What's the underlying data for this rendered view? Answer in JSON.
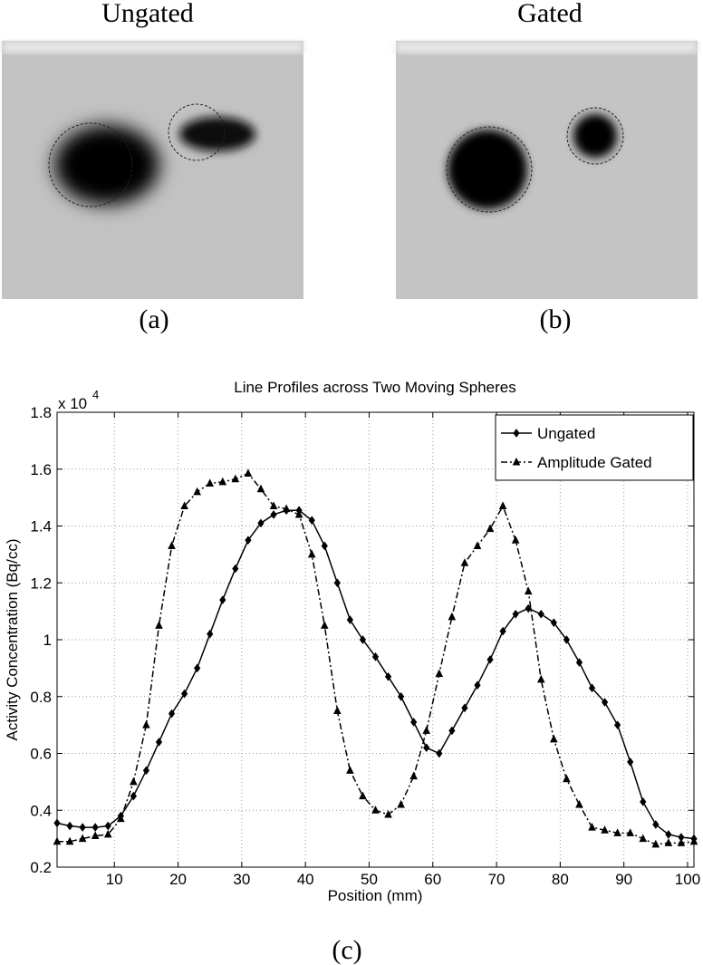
{
  "panels": {
    "a_title": "Ungated",
    "b_title": "Gated",
    "a_label": "(a)",
    "b_label": "(b)",
    "c_label": "(c)"
  },
  "chart_data": {
    "type": "line",
    "title": "Line Profiles across Two Moving Spheres",
    "xlabel": "Position (mm)",
    "ylabel": "Activity Concentration (Bq/cc)",
    "y_multiplier": "x 10",
    "y_multiplier_exp": "4",
    "x": [
      1,
      3,
      5,
      7,
      9,
      11,
      13,
      15,
      17,
      19,
      21,
      23,
      25,
      27,
      29,
      31,
      33,
      35,
      37,
      39,
      41,
      43,
      45,
      47,
      49,
      51,
      53,
      55,
      57,
      59,
      61,
      63,
      65,
      67,
      69,
      71,
      73,
      75,
      77,
      79,
      81,
      83,
      85,
      87,
      89,
      91,
      93,
      95,
      97,
      99,
      101
    ],
    "series": [
      {
        "name": "Ungated",
        "color": "#000000",
        "dash": "solid",
        "marker": "diamond",
        "values": [
          0.355,
          0.345,
          0.34,
          0.34,
          0.345,
          0.38,
          0.45,
          0.54,
          0.64,
          0.74,
          0.81,
          0.9,
          1.02,
          1.14,
          1.25,
          1.35,
          1.41,
          1.44,
          1.455,
          1.455,
          1.42,
          1.33,
          1.2,
          1.07,
          1.0,
          0.94,
          0.87,
          0.8,
          0.71,
          0.62,
          0.6,
          0.68,
          0.76,
          0.84,
          0.93,
          1.03,
          1.09,
          1.11,
          1.09,
          1.06,
          1.0,
          0.92,
          0.83,
          0.78,
          0.7,
          0.57,
          0.43,
          0.35,
          0.315,
          0.305,
          0.3
        ]
      },
      {
        "name": "Amplitude Gated",
        "color": "#000000",
        "dash": "dashdot",
        "marker": "triangle",
        "values": [
          0.29,
          0.29,
          0.3,
          0.31,
          0.315,
          0.37,
          0.5,
          0.7,
          1.05,
          1.33,
          1.47,
          1.52,
          1.55,
          1.555,
          1.565,
          1.585,
          1.53,
          1.47,
          1.46,
          1.44,
          1.3,
          1.05,
          0.75,
          0.54,
          0.45,
          0.4,
          0.385,
          0.42,
          0.52,
          0.68,
          0.88,
          1.08,
          1.27,
          1.33,
          1.39,
          1.47,
          1.35,
          1.17,
          0.86,
          0.65,
          0.51,
          0.42,
          0.34,
          0.33,
          0.32,
          0.32,
          0.3,
          0.28,
          0.285,
          0.285,
          0.29
        ]
      }
    ],
    "xlim": [
      1,
      101
    ],
    "xticks": [
      10,
      20,
      30,
      40,
      50,
      60,
      70,
      80,
      90,
      100
    ],
    "ylim": [
      0.2,
      1.8
    ],
    "yticks": [
      0.2,
      0.4,
      0.6,
      0.8,
      1,
      1.2,
      1.4,
      1.6,
      1.8
    ],
    "grid": true,
    "legend": "upper right"
  }
}
